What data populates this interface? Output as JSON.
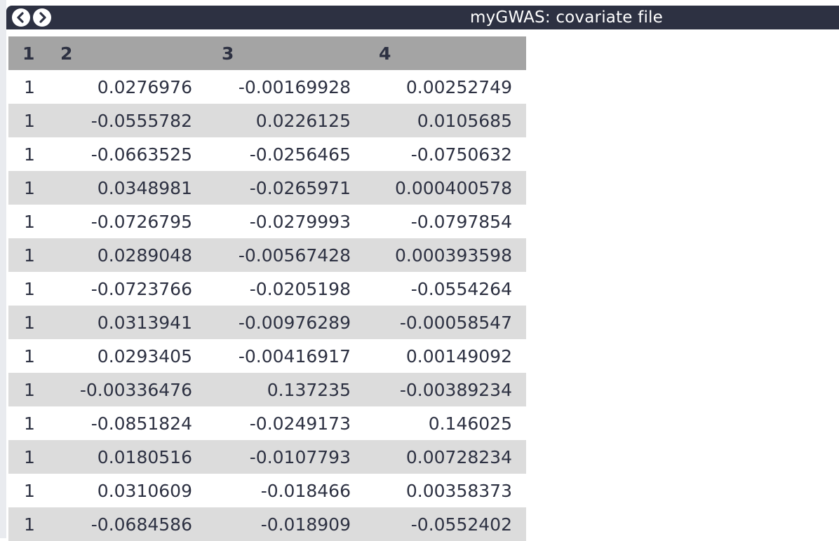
{
  "window": {
    "title": "myGWAS: covariate file",
    "nav": {
      "back_icon": "chevron-left-icon",
      "forward_icon": "chevron-right-icon"
    },
    "colors": {
      "titlebar": "#2d3142",
      "header_bg": "#a4a4a4",
      "row_stripe": "#dcdcdc",
      "text": "#2d3142"
    }
  },
  "table": {
    "headers": [
      "1",
      "2",
      "3",
      "4"
    ],
    "rows": [
      [
        "1",
        "0.0276976",
        "-0.00169928",
        "0.00252749"
      ],
      [
        "1",
        "-0.0555782",
        "0.0226125",
        "0.0105685"
      ],
      [
        "1",
        "-0.0663525",
        "-0.0256465",
        "-0.0750632"
      ],
      [
        "1",
        "0.0348981",
        "-0.0265971",
        "0.000400578"
      ],
      [
        "1",
        "-0.0726795",
        "-0.0279993",
        "-0.0797854"
      ],
      [
        "1",
        "0.0289048",
        "-0.00567428",
        "0.000393598"
      ],
      [
        "1",
        "-0.0723766",
        "-0.0205198",
        "-0.0554264"
      ],
      [
        "1",
        "0.0313941",
        "-0.00976289",
        "-0.00058547"
      ],
      [
        "1",
        "0.0293405",
        "-0.00416917",
        "0.00149092"
      ],
      [
        "1",
        "-0.00336476",
        "0.137235",
        "-0.00389234"
      ],
      [
        "1",
        "-0.0851824",
        "-0.0249173",
        "0.146025"
      ],
      [
        "1",
        "0.0180516",
        "-0.0107793",
        "0.00728234"
      ],
      [
        "1",
        "0.0310609",
        "-0.018466",
        "0.00358373"
      ],
      [
        "1",
        "-0.0684586",
        "-0.018909",
        "-0.0552402"
      ]
    ]
  }
}
